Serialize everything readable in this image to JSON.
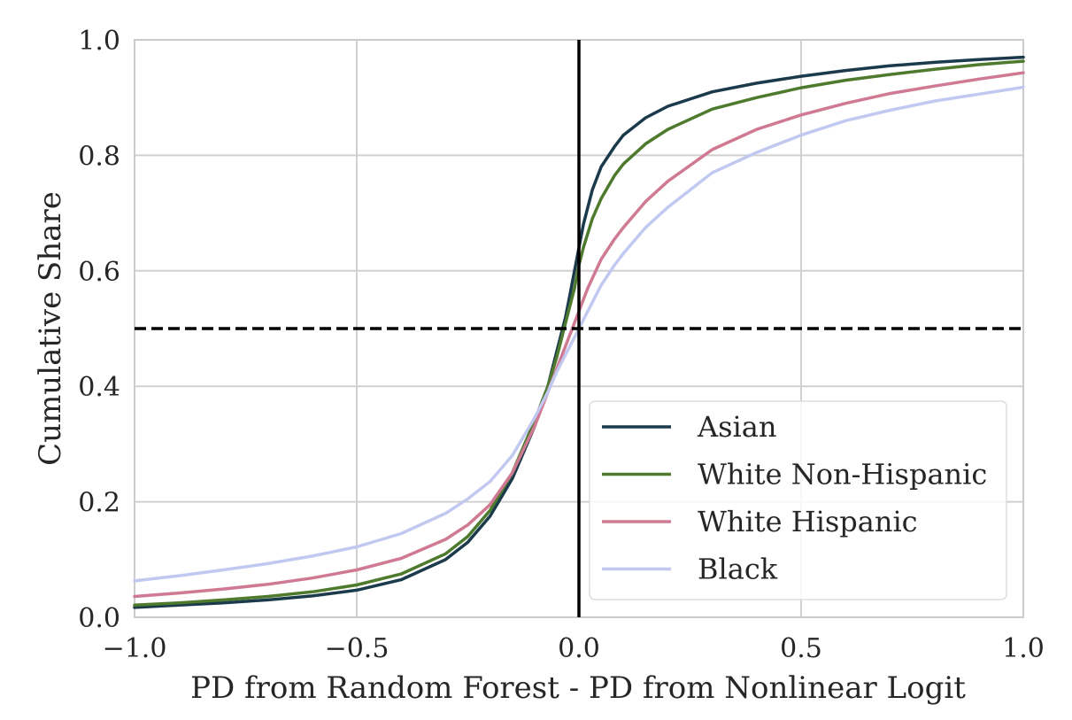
{
  "chart_data": {
    "type": "line",
    "title": "",
    "xlabel": "PD from Random Forest - PD from Nonlinear Logit",
    "ylabel": "Cumulative Share",
    "xlim": [
      -1.0,
      1.0
    ],
    "ylim": [
      0.0,
      1.0
    ],
    "xticks": [
      -1.0,
      -0.5,
      0.0,
      0.5,
      1.0
    ],
    "xtick_labels": [
      "−1.0",
      "−0.5",
      "0.0",
      "0.5",
      "1.0"
    ],
    "yticks": [
      0.0,
      0.2,
      0.4,
      0.6,
      0.8,
      1.0
    ],
    "ytick_labels": [
      "0.0",
      "0.2",
      "0.4",
      "0.6",
      "0.8",
      "1.0"
    ],
    "grid": true,
    "legend_position": "lower-right",
    "reference_lines": {
      "vertical_x": 0.0,
      "horizontal_dashed_y": 0.5,
      "color": "#000000"
    },
    "series": [
      {
        "name": "Asian",
        "color": "#1b3a4b",
        "x": [
          -1.0,
          -0.9,
          -0.8,
          -0.7,
          -0.6,
          -0.5,
          -0.4,
          -0.3,
          -0.25,
          -0.2,
          -0.15,
          -0.1,
          -0.07,
          -0.05,
          -0.03,
          -0.02,
          -0.01,
          0.0,
          0.01,
          0.03,
          0.05,
          0.08,
          0.1,
          0.15,
          0.2,
          0.3,
          0.4,
          0.5,
          0.6,
          0.7,
          0.8,
          0.9,
          1.0
        ],
        "y": [
          0.017,
          0.021,
          0.025,
          0.03,
          0.037,
          0.047,
          0.065,
          0.1,
          0.13,
          0.175,
          0.24,
          0.33,
          0.4,
          0.46,
          0.52,
          0.56,
          0.6,
          0.64,
          0.68,
          0.74,
          0.78,
          0.815,
          0.835,
          0.865,
          0.885,
          0.91,
          0.925,
          0.937,
          0.947,
          0.955,
          0.961,
          0.966,
          0.97
        ]
      },
      {
        "name": "White Non-Hispanic",
        "color": "#4e7a2e",
        "x": [
          -1.0,
          -0.9,
          -0.8,
          -0.7,
          -0.6,
          -0.5,
          -0.4,
          -0.3,
          -0.25,
          -0.2,
          -0.15,
          -0.1,
          -0.07,
          -0.05,
          -0.03,
          -0.01,
          0.0,
          0.01,
          0.03,
          0.05,
          0.08,
          0.1,
          0.15,
          0.2,
          0.3,
          0.4,
          0.5,
          0.6,
          0.7,
          0.8,
          0.9,
          1.0
        ],
        "y": [
          0.021,
          0.025,
          0.03,
          0.036,
          0.044,
          0.056,
          0.075,
          0.11,
          0.14,
          0.185,
          0.25,
          0.34,
          0.4,
          0.45,
          0.51,
          0.57,
          0.61,
          0.64,
          0.69,
          0.725,
          0.765,
          0.785,
          0.82,
          0.845,
          0.88,
          0.9,
          0.917,
          0.93,
          0.94,
          0.949,
          0.957,
          0.963
        ]
      },
      {
        "name": "White Hispanic",
        "color": "#cf7a92",
        "x": [
          -1.0,
          -0.9,
          -0.8,
          -0.7,
          -0.6,
          -0.5,
          -0.4,
          -0.3,
          -0.25,
          -0.2,
          -0.15,
          -0.1,
          -0.07,
          -0.05,
          -0.03,
          -0.01,
          0.0,
          0.02,
          0.05,
          0.08,
          0.1,
          0.15,
          0.2,
          0.3,
          0.4,
          0.5,
          0.6,
          0.7,
          0.8,
          0.9,
          1.0
        ],
        "y": [
          0.036,
          0.042,
          0.049,
          0.057,
          0.068,
          0.082,
          0.102,
          0.135,
          0.16,
          0.195,
          0.25,
          0.33,
          0.39,
          0.43,
          0.47,
          0.51,
          0.53,
          0.57,
          0.62,
          0.655,
          0.675,
          0.72,
          0.755,
          0.81,
          0.845,
          0.87,
          0.89,
          0.907,
          0.92,
          0.932,
          0.943
        ]
      },
      {
        "name": "Black",
        "color": "#c1c9f0",
        "x": [
          -1.0,
          -0.9,
          -0.8,
          -0.7,
          -0.6,
          -0.5,
          -0.4,
          -0.3,
          -0.25,
          -0.2,
          -0.15,
          -0.1,
          -0.07,
          -0.05,
          -0.03,
          -0.01,
          0.0,
          0.02,
          0.05,
          0.08,
          0.1,
          0.15,
          0.2,
          0.3,
          0.4,
          0.5,
          0.6,
          0.7,
          0.8,
          0.9,
          1.0
        ],
        "y": [
          0.063,
          0.072,
          0.082,
          0.093,
          0.106,
          0.122,
          0.145,
          0.18,
          0.205,
          0.235,
          0.28,
          0.345,
          0.39,
          0.425,
          0.455,
          0.485,
          0.5,
          0.53,
          0.575,
          0.61,
          0.63,
          0.675,
          0.71,
          0.77,
          0.805,
          0.835,
          0.86,
          0.878,
          0.894,
          0.906,
          0.918
        ]
      }
    ]
  }
}
